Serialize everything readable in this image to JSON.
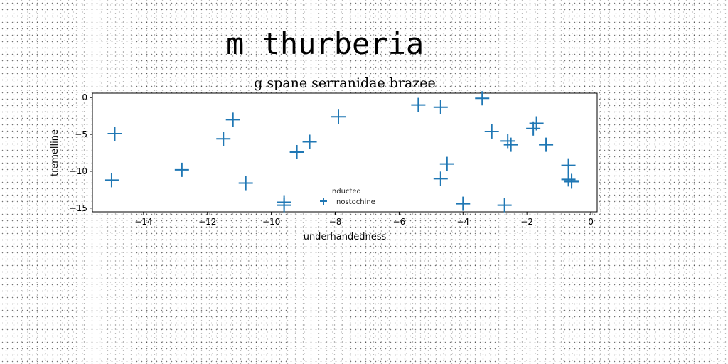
{
  "page_title": "m thurberia",
  "colors": {
    "series": "#1f77b4",
    "axes": "#000000",
    "background": "#ffffff"
  },
  "chart_data": {
    "type": "scatter",
    "title": "g spane serranidae brazee",
    "xlabel": "underhandedness",
    "ylabel": "tremelline",
    "xlim": [
      -15.6,
      0.2
    ],
    "ylim": [
      -15.5,
      0.6
    ],
    "xticks": [
      -14,
      -12,
      -10,
      -8,
      -6,
      -4,
      -2,
      0
    ],
    "yticks": [
      0,
      -5,
      -10,
      -15
    ],
    "grid": false,
    "marker": "plus",
    "legend": {
      "title": "inducted",
      "placement": "lower-center",
      "entries": [
        "nostochine"
      ]
    },
    "series": [
      {
        "name": "nostochine",
        "x": [
          -14.9,
          -15.0,
          -12.8,
          -11.5,
          -11.2,
          -10.8,
          -9.6,
          -9.6,
          -9.2,
          -8.8,
          -7.9,
          -5.4,
          -4.7,
          -4.7,
          -4.5,
          -4.0,
          -3.4,
          -3.1,
          -2.7,
          -2.6,
          -2.5,
          -1.8,
          -1.7,
          -1.4,
          -0.7,
          -0.7,
          -0.6,
          -0.6
        ],
        "y": [
          -4.9,
          -11.2,
          -9.8,
          -5.6,
          -3.0,
          -11.6,
          -14.2,
          -14.6,
          -7.4,
          -6.0,
          -2.6,
          -1.0,
          -1.3,
          -11.0,
          -9.0,
          -14.4,
          -0.1,
          -4.6,
          -14.6,
          -5.9,
          -6.4,
          -4.2,
          -3.5,
          -6.4,
          -9.2,
          -11.1,
          -11.3,
          -11.4
        ]
      }
    ]
  }
}
